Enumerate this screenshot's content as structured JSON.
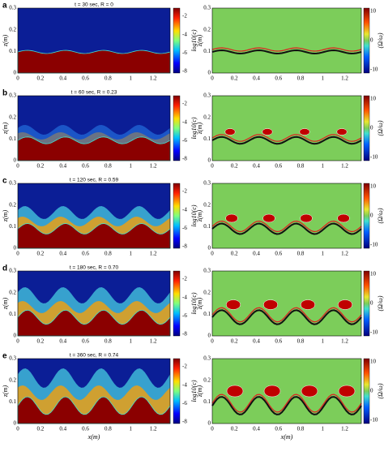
{
  "axes": {
    "x_label": "x(m)",
    "y_label": "z(m)",
    "xticks": [
      "0",
      "0.2",
      "0.4",
      "0.6",
      "0.8",
      "1",
      "1.2"
    ],
    "zticks": [
      "0",
      "0.1",
      "0.2",
      "0.3"
    ],
    "left_colorbar_label": "log10(c)",
    "left_colorbar_ticks": [
      "-2",
      "-4",
      "-6",
      "-8"
    ],
    "right_colorbar_label": "(Ω/ω)",
    "right_colorbar_ticks": [
      "10",
      "0",
      "-10"
    ]
  },
  "panels": [
    {
      "label": "a",
      "title": "t = 30 sec, R = 0"
    },
    {
      "label": "b",
      "title": "t = 60 sec, R = 0.23"
    },
    {
      "label": "c",
      "title": "t = 120 sec, R = 0.59"
    },
    {
      "label": "d",
      "title": "t = 180 sec, R = 0.70"
    },
    {
      "label": "e",
      "title": "t = 360 sec, R = 0.74"
    }
  ]
}
